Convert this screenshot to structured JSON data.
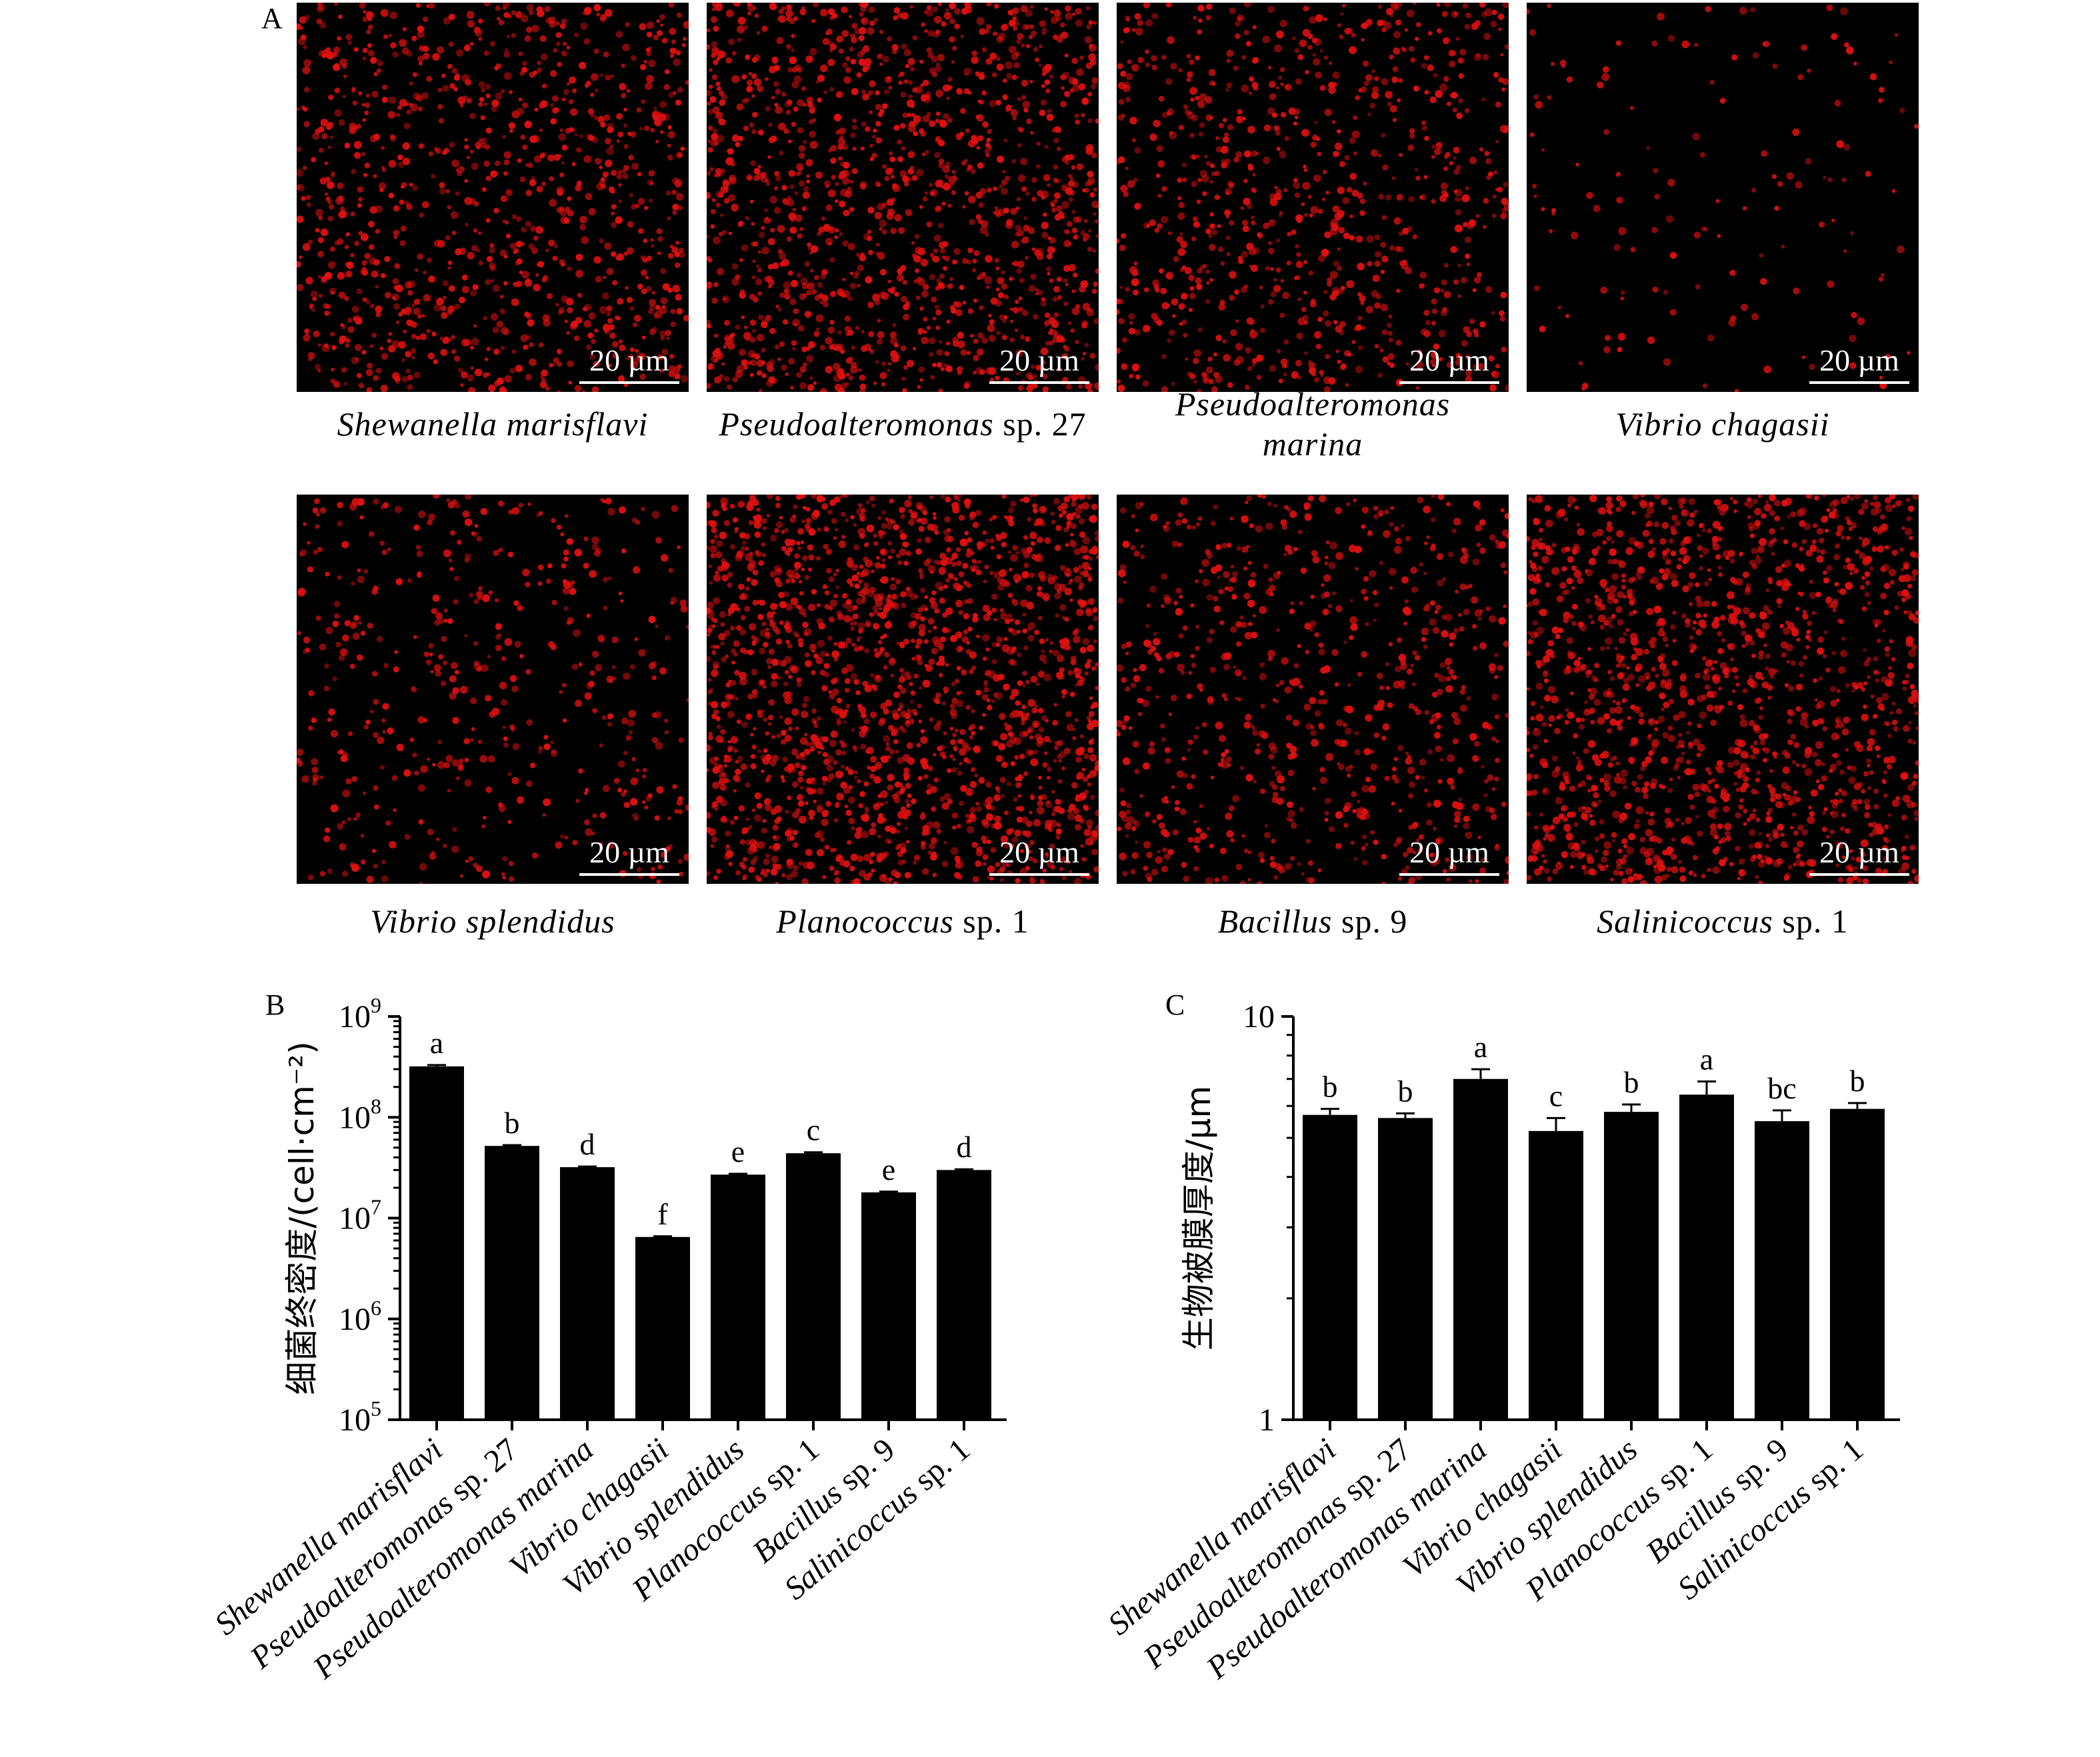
{
  "figure": {
    "panel_a": {
      "label": "A",
      "scale_bar": "20 µm",
      "images": [
        {
          "species_italic": "Shewanella marisflavi",
          "suffix": ""
        },
        {
          "species_italic": "Pseudoalteromonas",
          "suffix": " sp. 27"
        },
        {
          "species_italic": "Pseudoalteromonas marina",
          "suffix": ""
        },
        {
          "species_italic": "Vibrio chagasii",
          "suffix": ""
        },
        {
          "species_italic": "Vibrio splendidus",
          "suffix": ""
        },
        {
          "species_italic": "Planococcus",
          "suffix": " sp. 1"
        },
        {
          "species_italic": "Bacillus",
          "suffix": " sp. 9"
        },
        {
          "species_italic": "Salinicoccus",
          "suffix": " sp. 1"
        }
      ],
      "image_density": [
        0.55,
        0.75,
        0.45,
        0.06,
        0.25,
        1.0,
        0.4,
        0.8
      ],
      "stain_color": "#e01010"
    },
    "panel_b": {
      "label": "B"
    },
    "panel_c": {
      "label": "C"
    }
  },
  "chart_data": [
    {
      "type": "bar",
      "panel": "B",
      "title": "",
      "ylabel": "细菌终密度/(cell·cm⁻²)",
      "yscale": "log",
      "ylim": [
        100000,
        1000000000
      ],
      "ytick_base": "10",
      "yticks": [
        {
          "exp": "5",
          "value": 100000
        },
        {
          "exp": "6",
          "value": 1000000
        },
        {
          "exp": "7",
          "value": 10000000
        },
        {
          "exp": "8",
          "value": 100000000
        },
        {
          "exp": "9",
          "value": 1000000000
        }
      ],
      "categories": [
        {
          "italic": "Shewanella marisflavi",
          "suffix": ""
        },
        {
          "italic": "Pseudoalteromonas",
          "suffix": " sp. 27"
        },
        {
          "italic": "Pseudoalteromonas marina",
          "suffix": ""
        },
        {
          "italic": "Vibrio chagasii",
          "suffix": ""
        },
        {
          "italic": "Vibrio splendidus",
          "suffix": ""
        },
        {
          "italic": "Planococcus",
          "suffix": " sp. 1"
        },
        {
          "italic": "Bacillus",
          "suffix": " sp. 9"
        },
        {
          "italic": "Salinicoccus",
          "suffix": " sp. 1"
        }
      ],
      "values": [
        320000000,
        52000000,
        32000000,
        6500000,
        27000000,
        44000000,
        18000000,
        30000000
      ],
      "error_upper": [
        330000000,
        53000000,
        32500000,
        6600000,
        27500000,
        45000000,
        18300000,
        30500000
      ],
      "significance": [
        "a",
        "b",
        "d",
        "f",
        "e",
        "c",
        "e",
        "d"
      ],
      "bar_color": "#000000"
    },
    {
      "type": "bar",
      "panel": "C",
      "title": "",
      "ylabel": "生物被膜厚度/μm",
      "yscale": "log",
      "ylim": [
        1,
        10
      ],
      "yticks": [
        {
          "label": "1",
          "value": 1
        },
        {
          "label": "10",
          "value": 10
        }
      ],
      "categories": [
        {
          "italic": "Shewanella marisflavi",
          "suffix": ""
        },
        {
          "italic": "Pseudoalteromonas",
          "suffix": " sp. 27"
        },
        {
          "italic": "Pseudoalteromonas marina",
          "suffix": ""
        },
        {
          "italic": "Vibrio chagasii",
          "suffix": ""
        },
        {
          "italic": "Vibrio splendidus",
          "suffix": ""
        },
        {
          "italic": "Planococcus",
          "suffix": " sp. 1"
        },
        {
          "italic": "Bacillus",
          "suffix": " sp. 9"
        },
        {
          "italic": "Salinicoccus",
          "suffix": " sp. 1"
        }
      ],
      "values": [
        5.7,
        5.6,
        7.0,
        5.2,
        5.8,
        6.4,
        5.5,
        5.9
      ],
      "error_upper": [
        5.9,
        5.75,
        7.4,
        5.6,
        6.05,
        6.9,
        5.85,
        6.1
      ],
      "significance": [
        "b",
        "b",
        "a",
        "c",
        "b",
        "a",
        "bc",
        "b"
      ],
      "bar_color": "#000000"
    }
  ]
}
